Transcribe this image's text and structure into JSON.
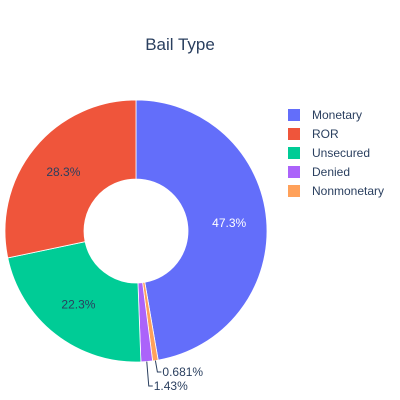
{
  "chart_data": {
    "type": "pie",
    "title": "Bail Type",
    "hole": true,
    "direction": "clockwise",
    "legend_position": "right",
    "slices": [
      {
        "label": "Monetary",
        "value": 47.3,
        "text": "47.3%",
        "color": "#636efa",
        "text_color": "#ffffff",
        "text_position": "inside"
      },
      {
        "label": "Nonmonetary",
        "value": 0.681,
        "text": "0.681%",
        "color": "#ffa15a",
        "text_color": "#2a3f5f",
        "text_position": "outside"
      },
      {
        "label": "Denied",
        "value": 1.43,
        "text": "1.43%",
        "color": "#ab63fa",
        "text_color": "#2a3f5f",
        "text_position": "outside"
      },
      {
        "label": "Unsecured",
        "value": 22.3,
        "text": "22.3%",
        "color": "#00cc96",
        "text_color": "#2a3f5f",
        "text_position": "inside"
      },
      {
        "label": "ROR",
        "value": 28.3,
        "text": "28.3%",
        "color": "#ef553b",
        "text_color": "#2a3f5f",
        "text_position": "inside"
      }
    ],
    "legend": [
      {
        "label": "Monetary",
        "color": "#636efa"
      },
      {
        "label": "ROR",
        "color": "#ef553b"
      },
      {
        "label": "Unsecured",
        "color": "#00cc96"
      },
      {
        "label": "Denied",
        "color": "#ab63fa"
      },
      {
        "label": "Nonmonetary",
        "color": "#ffa15a"
      }
    ]
  }
}
